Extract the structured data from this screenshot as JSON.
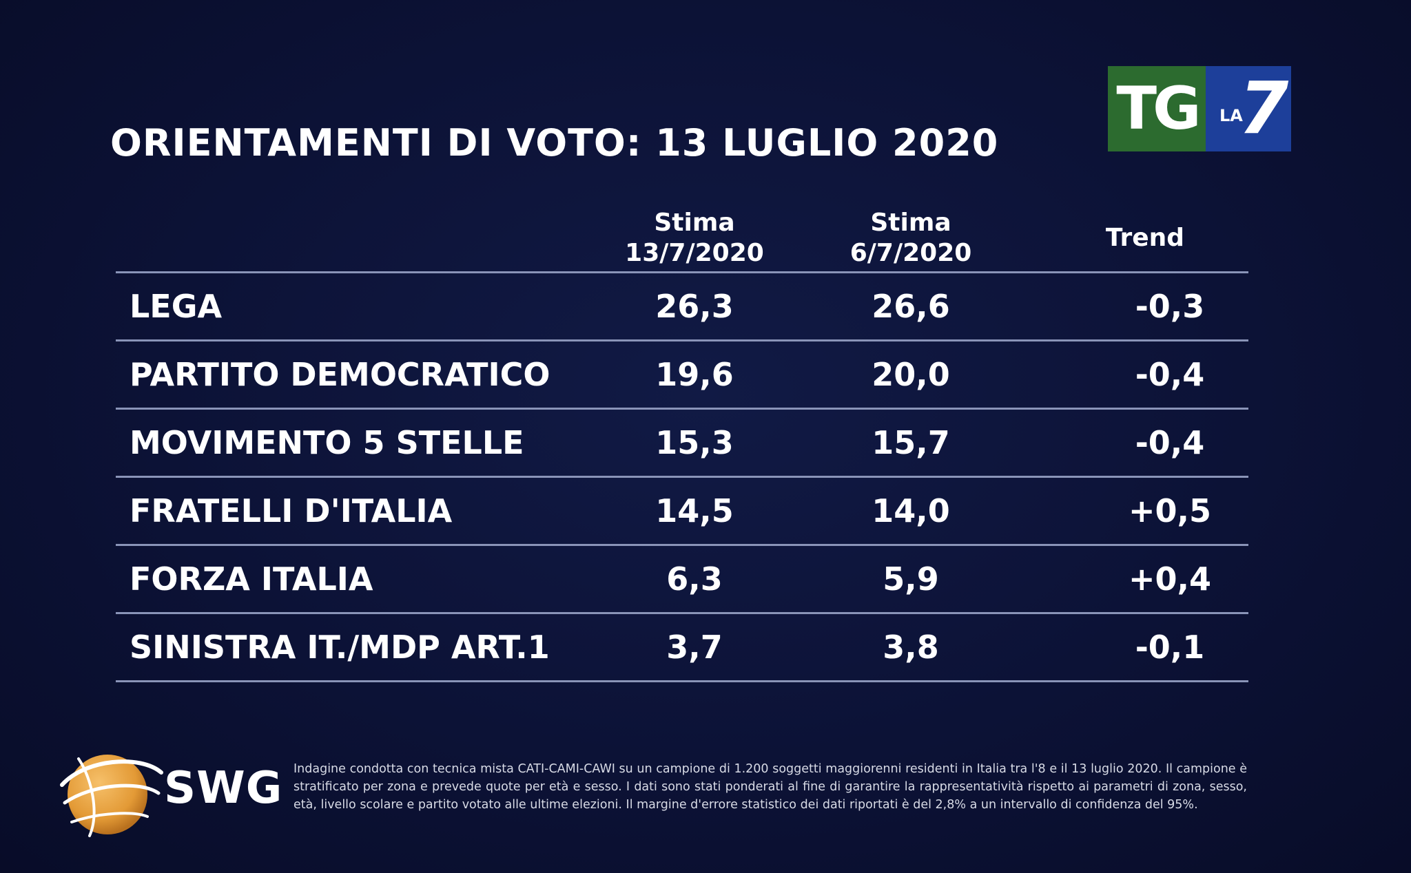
{
  "title": "ORIENTAMENTI DI VOTO: 13 LUGLIO 2020",
  "logo": {
    "tg": "TG",
    "la": "LA",
    "seven": "7"
  },
  "brand": {
    "swg": "SWG"
  },
  "colors": {
    "background": "#0b1133",
    "text": "#ffffff",
    "rule": "#8a94b8",
    "tg_green": "#2c6b2f",
    "la7_blue": "#1d3f9a",
    "swg_orange": "#e8a03c"
  },
  "chart_data": {
    "type": "table",
    "columns": [
      {
        "line1": "",
        "line2": ""
      },
      {
        "line1": "Stima",
        "line2": "13/7/2020"
      },
      {
        "line1": "Stima",
        "line2": "6/7/2020"
      },
      {
        "line1": "Trend",
        "line2": ""
      }
    ],
    "rows": [
      {
        "party": "LEGA",
        "stima_13_7": "26,3",
        "stima_6_7": "26,6",
        "trend": "-0,3"
      },
      {
        "party": "PARTITO DEMOCRATICO",
        "stima_13_7": "19,6",
        "stima_6_7": "20,0",
        "trend": "-0,4"
      },
      {
        "party": "MOVIMENTO 5 STELLE",
        "stima_13_7": "15,3",
        "stima_6_7": "15,7",
        "trend": "-0,4"
      },
      {
        "party": "FRATELLI D'ITALIA",
        "stima_13_7": "14,5",
        "stima_6_7": "14,0",
        "trend": "+0,5"
      },
      {
        "party": "FORZA ITALIA",
        "stima_13_7": "6,3",
        "stima_6_7": "5,9",
        "trend": "+0,4"
      },
      {
        "party": "SINISTRA IT./MDP ART.1",
        "stima_13_7": "3,7",
        "stima_6_7": "3,8",
        "trend": "-0,1"
      }
    ]
  },
  "footnote": "Indagine condotta con tecnica mista CATI-CAMI-CAWI su un campione di 1.200 soggetti maggiorenni residenti in Italia tra l'8 e il 13 luglio 2020. Il campione è stratificato per zona e prevede quote per età e sesso. I dati sono stati ponderati al fine di garantire la rappresentatività rispetto ai parametri di zona, sesso, età, livello scolare e partito votato alle ultime elezioni. Il margine d'errore statistico dei dati riportati è del 2,8% a un intervallo di confidenza del 95%."
}
